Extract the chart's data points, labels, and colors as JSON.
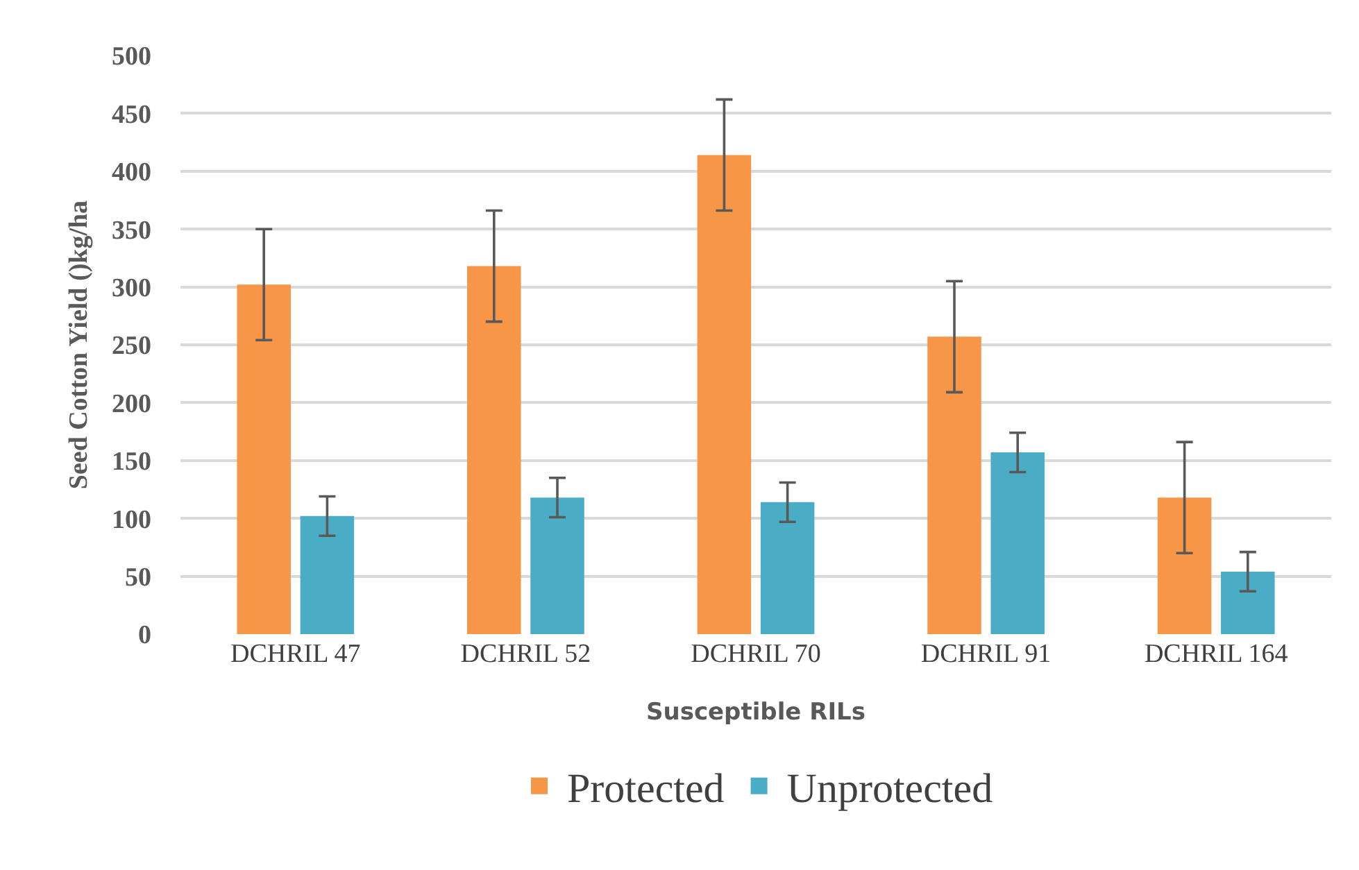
{
  "chart_data": {
    "type": "bar",
    "xlabel": "Susceptible RILs",
    "ylabel": "Seed Cotton Yield ()kg/ha",
    "categories": [
      "DCHRIL 47",
      "DCHRIL 52",
      "DCHRIL 70",
      "DCHRIL 91",
      "DCHRIL 164"
    ],
    "series": [
      {
        "name": "Protected",
        "color": "#f79646",
        "values": [
          302,
          318,
          414,
          257,
          118
        ],
        "errors": [
          48,
          48,
          48,
          48,
          48
        ]
      },
      {
        "name": "Unprotected",
        "color": "#4bacc6",
        "values": [
          102,
          118,
          114,
          157,
          54
        ],
        "errors": [
          17,
          17,
          17,
          17,
          17
        ]
      }
    ],
    "ylim": [
      0,
      500
    ],
    "yticks": [
      0,
      50,
      100,
      150,
      200,
      250,
      300,
      350,
      400,
      450,
      500
    ],
    "grid": "y",
    "legend": "bottom"
  }
}
